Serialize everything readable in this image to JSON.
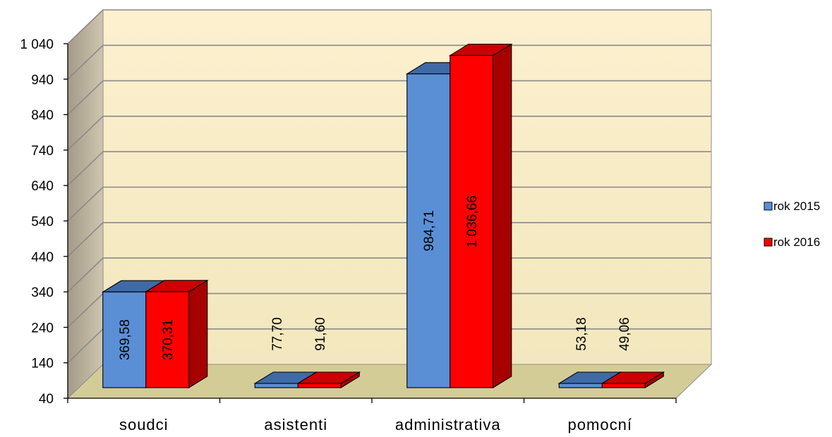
{
  "chart_data": {
    "type": "bar",
    "categories": [
      "soudci",
      "asistenti",
      "administrativa",
      "pomocní"
    ],
    "series": [
      {
        "name": "rok 2015",
        "values": [
          369.58,
          77.7,
          984.71,
          53.18
        ],
        "labels": [
          "369,58",
          "77,70",
          "984,71",
          "53,18"
        ]
      },
      {
        "name": "rok 2016",
        "values": [
          370.31,
          91.6,
          1036.66,
          49.06
        ],
        "labels": [
          "370,31",
          "91,60",
          "1 036,66",
          "49,06"
        ]
      }
    ],
    "y_ticks": [
      40,
      140,
      240,
      340,
      440,
      540,
      640,
      740,
      840,
      940,
      1040
    ],
    "y_tick_labels": [
      "40",
      "140",
      "240",
      "340",
      "440",
      "540",
      "640",
      "740",
      "840",
      "940",
      "1 040"
    ],
    "ylim": [
      40,
      1040
    ],
    "title": "",
    "xlabel": "",
    "ylabel": "",
    "grid": true,
    "legend_position": "right",
    "style": "3d-clustered-column",
    "colors": {
      "rok 2015": {
        "front": "#5a8fd6",
        "top": "#3f6aa6",
        "side": "#2f5690"
      },
      "rok 2016": {
        "front": "#ff0000",
        "top": "#cc0000",
        "side": "#a60000"
      },
      "back_wall_top": "#fdf0cf",
      "back_wall_bottom": "#f2e7bd",
      "side_wall": "#bdb4a0",
      "floor": "#d4cc97"
    }
  }
}
